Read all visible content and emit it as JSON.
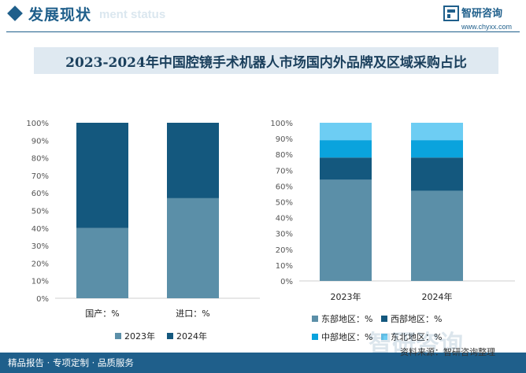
{
  "header": {
    "section_title": "发展现状",
    "section_subtitle": "ment status",
    "logo_name": "智研咨询",
    "logo_url": "www.chyxx.com"
  },
  "title": "2023-2024年中国腔镜手术机器人市场国内外品牌及区域采购占比",
  "footer": {
    "left": "精品报告 · 专项定制 · 品质服务",
    "source": "资料来源：智研咨询整理"
  },
  "watermark": "智研咨询",
  "colors": {
    "c2023": "#5b8fa8",
    "c2024": "#14587e",
    "east": "#5b8fa8",
    "west": "#14587e",
    "central": "#0aa3dd",
    "northeast": "#6dcdf3",
    "accent": "#1f5f8b"
  },
  "chart_data": [
    {
      "type": "bar",
      "stacked": true,
      "categories": [
        "国产：%",
        "进口：%"
      ],
      "series": [
        {
          "name": "2023年",
          "values": [
            40,
            57
          ]
        },
        {
          "name": "2024年",
          "values": [
            60,
            43
          ]
        }
      ],
      "ylim": [
        0,
        100
      ],
      "yticks": [
        "0%",
        "10%",
        "20%",
        "30%",
        "40%",
        "50%",
        "60%",
        "70%",
        "80%",
        "90%",
        "100%"
      ],
      "legend": "bottom"
    },
    {
      "type": "bar",
      "stacked": true,
      "categories": [
        "2023年",
        "2024年"
      ],
      "series": [
        {
          "name": "东部地区：%",
          "values": [
            64,
            57
          ]
        },
        {
          "name": "西部地区：%",
          "values": [
            14,
            21
          ]
        },
        {
          "name": "中部地区：%",
          "values": [
            11,
            11
          ]
        },
        {
          "name": "东北地区：%",
          "values": [
            11,
            11
          ]
        }
      ],
      "ylim": [
        0,
        100
      ],
      "yticks": [
        "0%",
        "10%",
        "20%",
        "30%",
        "40%",
        "50%",
        "60%",
        "70%",
        "80%",
        "90%",
        "100%"
      ],
      "legend": "bottom"
    }
  ]
}
